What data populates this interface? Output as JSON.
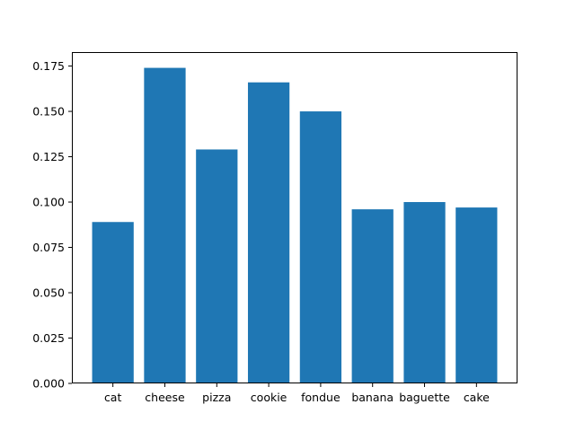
{
  "chart_data": {
    "type": "bar",
    "title": "",
    "xlabel": "",
    "ylabel": "",
    "categories": [
      "cat",
      "cheese",
      "pizza",
      "cookie",
      "fondue",
      "banana",
      "baguette",
      "cake"
    ],
    "values": [
      0.089,
      0.174,
      0.129,
      0.166,
      0.15,
      0.096,
      0.1,
      0.097
    ],
    "ylim": [
      0,
      0.1827
    ],
    "yticks": [
      0.0,
      0.025,
      0.05,
      0.075,
      0.1,
      0.125,
      0.15,
      0.175
    ],
    "ytick_labels": [
      "0.000",
      "0.025",
      "0.050",
      "0.075",
      "0.100",
      "0.125",
      "0.150",
      "0.175"
    ],
    "grid": false,
    "bar_color": "#1f77b4"
  }
}
